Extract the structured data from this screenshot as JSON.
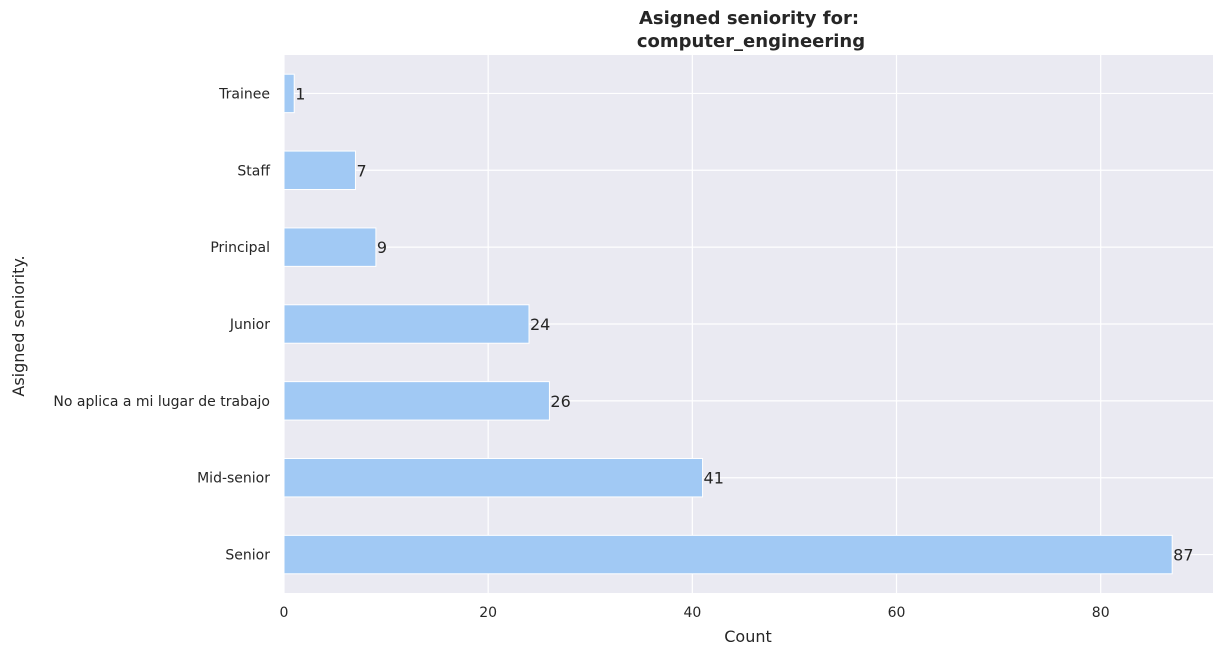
{
  "chart_data": {
    "type": "bar",
    "orientation": "horizontal",
    "title_lines": [
      "Asigned seniority for:",
      "computer_engineering"
    ],
    "xlabel": "Count",
    "ylabel": "Asigned seniority.",
    "categories": [
      "Trainee",
      "Staff",
      "Principal",
      "Junior",
      "No aplica a mi lugar de trabajo",
      "Mid-senior",
      "Senior"
    ],
    "values": [
      1,
      7,
      9,
      24,
      26,
      41,
      87
    ],
    "data_labels": [
      "1",
      "7",
      "9",
      "24",
      "26",
      "41",
      "87"
    ],
    "xlim": [
      0,
      91
    ],
    "xticks": [
      0,
      20,
      40,
      60,
      80
    ],
    "xtick_labels": [
      "0",
      "20",
      "40",
      "60",
      "80"
    ],
    "grid": true,
    "colors": {
      "bar": "#a1c9f4",
      "plot_background": "#eaeaf2",
      "grid": "#ffffff",
      "text": "#262626"
    }
  }
}
